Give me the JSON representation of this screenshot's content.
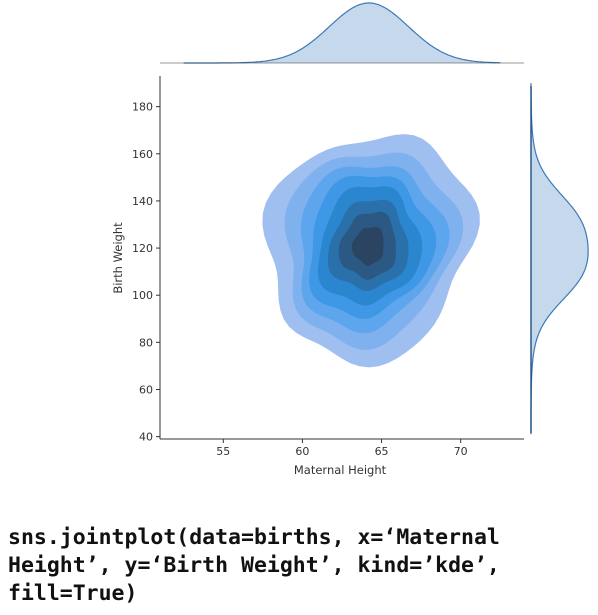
{
  "chart_data": {
    "type": "kde-jointplot",
    "xlabel": "Maternal Height",
    "ylabel": "Birth Weight",
    "xlim": [
      51,
      74
    ],
    "ylim": [
      39,
      193
    ],
    "xticks": [
      55,
      60,
      65,
      70
    ],
    "yticks": [
      40,
      60,
      80,
      100,
      120,
      140,
      160,
      180
    ],
    "fill": true,
    "center": {
      "x": 64.2,
      "y": 121
    },
    "marginal_x": {
      "mean": 64.2,
      "sd": 2.5
    },
    "marginal_y": {
      "mean": 120,
      "sd": 18
    },
    "levels": [
      {
        "hx": 6.5,
        "hy": 48,
        "color": "#9ebff0"
      },
      {
        "hx": 5.4,
        "hy": 41,
        "color": "#7fb1ee"
      },
      {
        "hx": 4.6,
        "hy": 35,
        "color": "#5da5ec"
      },
      {
        "hx": 3.9,
        "hy": 30,
        "color": "#3e98e6"
      },
      {
        "hx": 3.2,
        "hy": 25,
        "color": "#2b86d0"
      },
      {
        "hx": 2.5,
        "hy": 19,
        "color": "#2a70ab"
      },
      {
        "hx": 1.8,
        "hy": 14,
        "color": "#2c5984"
      },
      {
        "hx": 1.0,
        "hy": 8,
        "color": "#2b4461"
      }
    ],
    "colors": {
      "fill": "#c6d9ec",
      "line": "#3a7ab5",
      "axis": "#333333"
    }
  },
  "code_lines": [
    "sns.jointplot(data=births, x=‘Maternal",
    "Height’, y=‘Birth Weight’, kind=’kde’,",
    "fill=True)"
  ]
}
